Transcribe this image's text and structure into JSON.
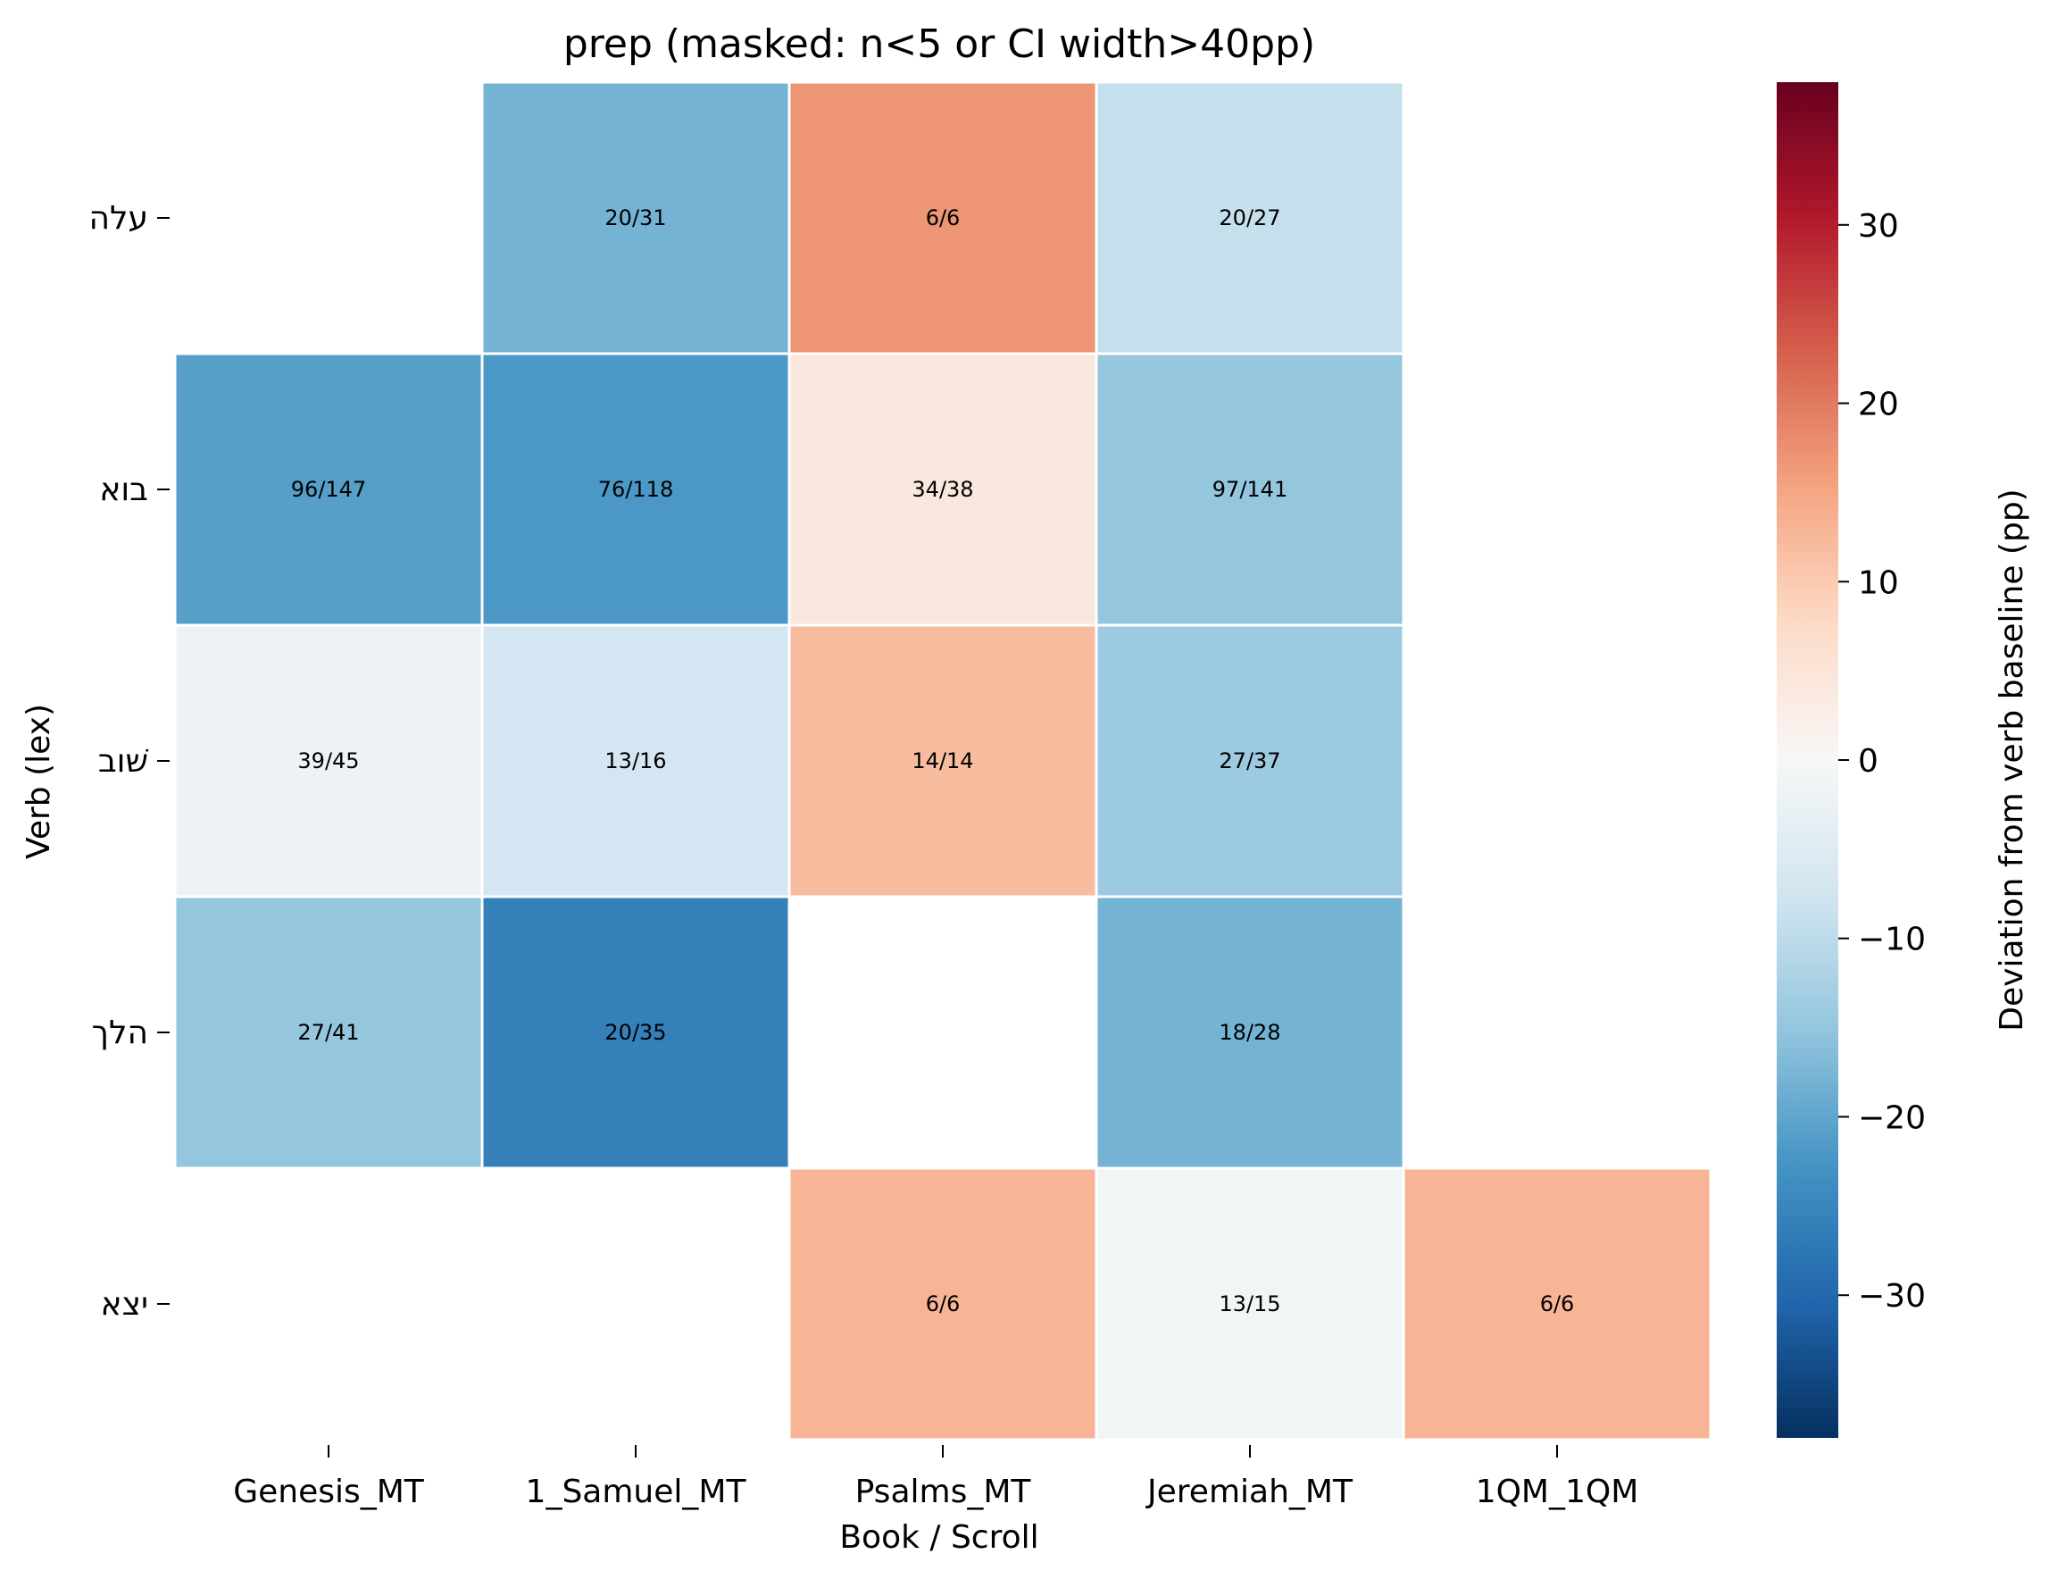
{
  "chart_data": {
    "type": "heatmap",
    "title": "prep (masked: n<5 or CI width>40pp)",
    "xlabel": "Book / Scroll",
    "ylabel": "Verb (lex)",
    "x_categories": [
      "Genesis_MT",
      "1_Samuel_MT",
      "Psalms_MT",
      "Jeremiah_MT",
      "1QM_1QM"
    ],
    "y_categories": [
      "עלה",
      "בוא",
      "שׁוב",
      "הלך",
      "יצא"
    ],
    "values": [
      [
        null,
        -18,
        17,
        -9,
        null
      ],
      [
        -21,
        -22,
        4,
        -15,
        null
      ],
      [
        -2,
        -7,
        12,
        -14,
        null
      ],
      [
        -15,
        -26,
        null,
        -18,
        null
      ],
      [
        null,
        null,
        13,
        -1,
        13
      ]
    ],
    "annotations": [
      [
        null,
        "20/31",
        "6/6",
        "20/27",
        null
      ],
      [
        "96/147",
        "76/118",
        "34/38",
        "97/141",
        null
      ],
      [
        "39/45",
        "13/16",
        "14/14",
        "27/37",
        null
      ],
      [
        "27/41",
        "20/35",
        null,
        "18/28",
        null
      ],
      [
        null,
        null,
        "6/6",
        "13/15",
        "6/6"
      ]
    ],
    "colorbar": {
      "label": "Deviation from verb baseline (pp)",
      "range": [
        -38,
        38
      ],
      "ticks": [
        -30,
        -20,
        -10,
        0,
        10,
        20,
        30
      ],
      "tick_labels": [
        "−30",
        "−20",
        "−10",
        "0",
        "10",
        "20",
        "30"
      ],
      "colormap": "RdBu_r"
    },
    "grid": false,
    "masked_cells": "blank"
  },
  "colors": {
    "cell_border": "#ffffff",
    "masked": "#ffffff",
    "text": "#000000"
  }
}
